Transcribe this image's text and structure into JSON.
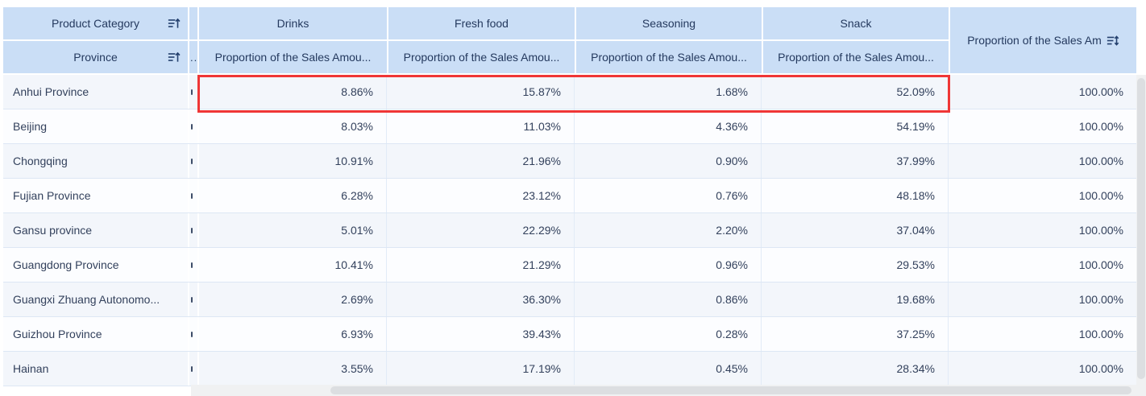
{
  "table": {
    "corner": {
      "row1_label": "Product Category",
      "row2_label": "Province"
    },
    "narrow_column": {
      "header_label": "..",
      "cell_marker_icon": "clipped-text-marker"
    },
    "column_groups": [
      {
        "label": "Drinks",
        "sub_label": "Proportion of the Sales Amou..."
      },
      {
        "label": "Fresh food",
        "sub_label": "Proportion of the Sales Amou..."
      },
      {
        "label": "Seasoning",
        "sub_label": "Proportion of the Sales Amou..."
      },
      {
        "label": "Snack",
        "sub_label": "Proportion of the Sales Amou..."
      }
    ],
    "total_column": {
      "label": "Proportion of the Sales Am"
    },
    "rows": [
      {
        "province": "Anhui Province",
        "values": [
          "8.86%",
          "15.87%",
          "1.68%",
          "52.09%"
        ],
        "total": "100.00%",
        "highlighted": true
      },
      {
        "province": "Beijing",
        "values": [
          "8.03%",
          "11.03%",
          "4.36%",
          "54.19%"
        ],
        "total": "100.00%",
        "highlighted": false
      },
      {
        "province": "Chongqing",
        "values": [
          "10.91%",
          "21.96%",
          "0.90%",
          "37.99%"
        ],
        "total": "100.00%",
        "highlighted": false
      },
      {
        "province": "Fujian Province",
        "values": [
          "6.28%",
          "23.12%",
          "0.76%",
          "48.18%"
        ],
        "total": "100.00%",
        "highlighted": false
      },
      {
        "province": "Gansu province",
        "values": [
          "5.01%",
          "22.29%",
          "2.20%",
          "37.04%"
        ],
        "total": "100.00%",
        "highlighted": false
      },
      {
        "province": "Guangdong Province",
        "values": [
          "10.41%",
          "21.29%",
          "0.96%",
          "29.53%"
        ],
        "total": "100.00%",
        "highlighted": false
      },
      {
        "province": "Guangxi Zhuang Autonomo...",
        "values": [
          "2.69%",
          "36.30%",
          "0.86%",
          "19.68%"
        ],
        "total": "100.00%",
        "highlighted": false
      },
      {
        "province": "Guizhou Province",
        "values": [
          "6.93%",
          "39.43%",
          "0.28%",
          "37.25%"
        ],
        "total": "100.00%",
        "highlighted": false
      },
      {
        "province": "Hainan",
        "values": [
          "3.55%",
          "17.19%",
          "0.45%",
          "28.34%"
        ],
        "total": "100.00%",
        "highlighted": false
      }
    ]
  },
  "icons": {
    "corner_sort": "sort-ascending-icon",
    "total_sort": "sort-updown-icon"
  },
  "colors": {
    "header_bg": "#cadef6",
    "header_text": "#24395e",
    "cell_text": "#33415c",
    "row_tint": "#f3f6fb",
    "row_white": "#fcfdff",
    "grid_line": "#dde7f4",
    "col_line": "#e2ebf7",
    "highlight_red": "#ef3636",
    "scroll_track": "#f0f1f2",
    "scroll_thumb": "#dcdee1"
  }
}
